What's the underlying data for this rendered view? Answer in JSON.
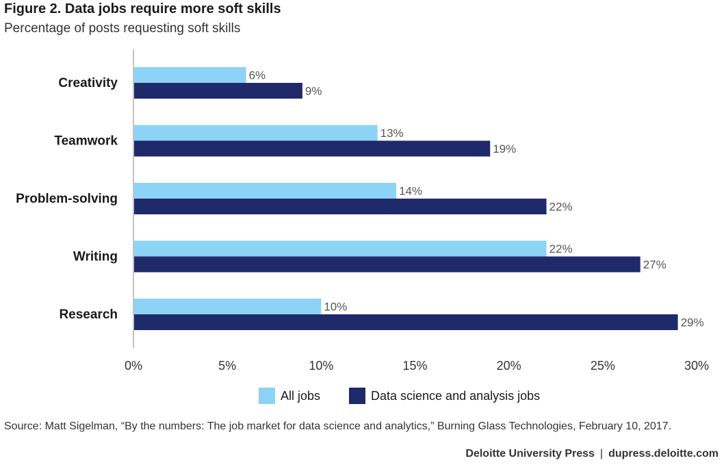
{
  "figure": {
    "title": "Figure 2. Data jobs require more soft skills",
    "subtitle": "Percentage of posts requesting soft skills",
    "source": "Source: Matt Sigelman, “By the numbers: The job market for data science and analytics,” Burning Glass Technologies, February 10, 2017.",
    "publisher": "Deloitte University Press",
    "separator": "|",
    "website": "dupress.deloitte.com"
  },
  "chart_data": {
    "type": "bar",
    "orientation": "horizontal",
    "title": "Figure 2. Data jobs require more soft skills",
    "subtitle": "Percentage of posts requesting soft skills",
    "categories": [
      "Creativity",
      "Teamwork",
      "Problem-solving",
      "Writing",
      "Research"
    ],
    "series": [
      {
        "name": "All jobs",
        "values": [
          6,
          13,
          14,
          22,
          10
        ],
        "color": "#8dd3f5"
      },
      {
        "name": "Data science and analysis jobs",
        "values": [
          9,
          19,
          22,
          27,
          29
        ],
        "color": "#1f2a6b"
      }
    ],
    "value_suffix": "%",
    "xlim": [
      0,
      30
    ],
    "xticks": [
      0,
      5,
      10,
      15,
      20,
      25,
      30
    ],
    "xtick_labels": [
      "0%",
      "5%",
      "10%",
      "15%",
      "20%",
      "25%",
      "30%"
    ],
    "xlabel": "",
    "ylabel": "",
    "grid": false,
    "legend_position": "bottom-center"
  }
}
